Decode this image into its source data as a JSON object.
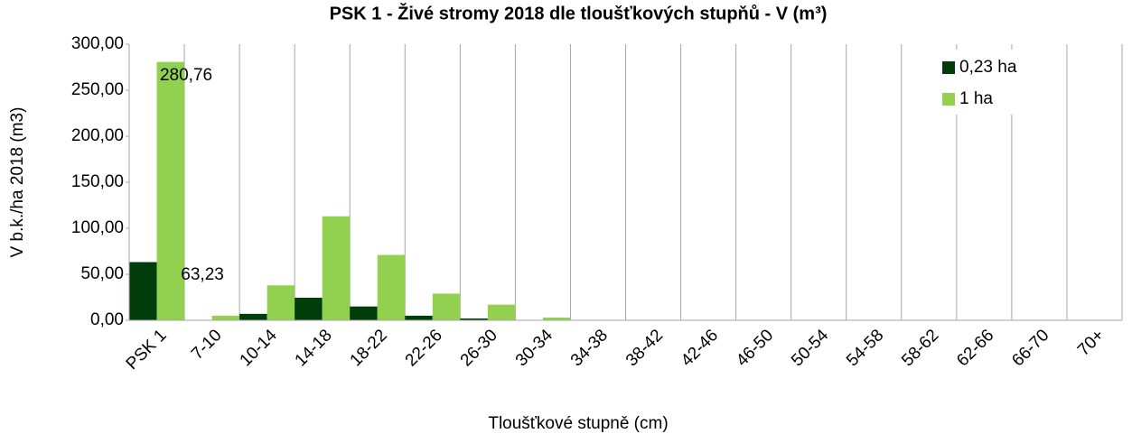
{
  "chart_data": {
    "type": "bar",
    "title": "PSK 1 - Živé stromy 2018 dle tloušťkových stupňů  - V (m³)",
    "x_label": "Tloušťkové stupně (cm)",
    "y_label": "V b.k./ha 2018 (m3)",
    "categories": [
      "PSK 1",
      "7-10",
      "10-14",
      "14-18",
      "18-22",
      "22-26",
      "26-30",
      "30-34",
      "34-38",
      "38-42",
      "42-46",
      "46-50",
      "50-54",
      "54-58",
      "58-62",
      "62-66",
      "66-70",
      "70+"
    ],
    "series": [
      {
        "name": "0,23 ha",
        "color": "#003d0a",
        "values": [
          63.23,
          0,
          7,
          24.5,
          15,
          5,
          2,
          0.5,
          0,
          0,
          0,
          0,
          0,
          0,
          0,
          0,
          0,
          0
        ],
        "value_labels": [
          "63,23",
          null,
          null,
          null,
          null,
          null,
          null,
          null,
          null,
          null,
          null,
          null,
          null,
          null,
          null,
          null,
          null,
          null
        ]
      },
      {
        "name": "1 ha",
        "color": "#92d050",
        "values": [
          280.76,
          5,
          38,
          113,
          71,
          29,
          17,
          3,
          0,
          0,
          0,
          0,
          0,
          0,
          0,
          0,
          0,
          0
        ],
        "value_labels": [
          "280,76",
          null,
          null,
          null,
          null,
          null,
          null,
          null,
          null,
          null,
          null,
          null,
          null,
          null,
          null,
          null,
          null,
          null
        ]
      }
    ],
    "ylim": [
      0,
      300
    ],
    "yticks": [
      {
        "value": 0,
        "label": "0,00"
      },
      {
        "value": 50,
        "label": "50,00"
      },
      {
        "value": 100,
        "label": "100,00"
      },
      {
        "value": 150,
        "label": "150,00"
      },
      {
        "value": 200,
        "label": "200,00"
      },
      {
        "value": 250,
        "label": "250,00"
      },
      {
        "value": 300,
        "label": "300,00"
      }
    ],
    "grid": "x",
    "legend": "top-right"
  }
}
